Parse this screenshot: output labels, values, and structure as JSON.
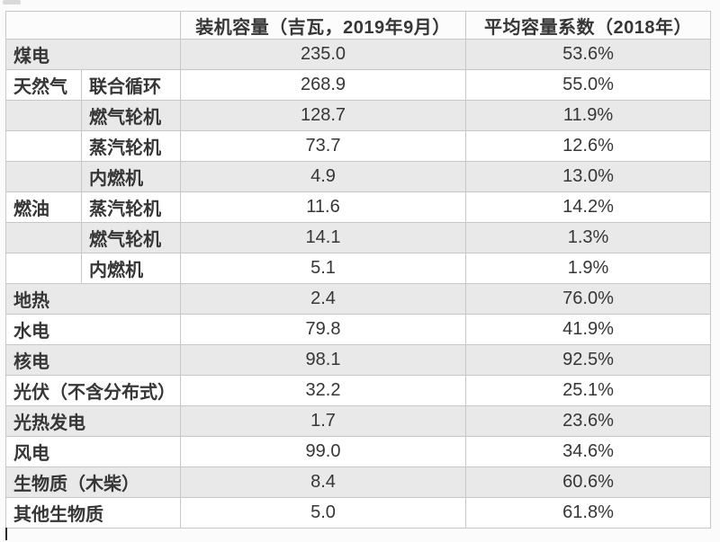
{
  "table": {
    "header": {
      "label": "",
      "capacity": "装机容量（吉瓦，2019年9月）",
      "factor": "平均容量系数（2018年）"
    },
    "rows": [
      {
        "group": "煤电",
        "capacity": "235.0",
        "factor": "53.6%"
      },
      {
        "group": "天然气",
        "sub": "联合循环",
        "capacity": "268.9",
        "factor": "55.0%"
      },
      {
        "group": "",
        "sub": "燃气轮机",
        "capacity": "128.7",
        "factor": "11.9%"
      },
      {
        "group": "",
        "sub": "蒸汽轮机",
        "capacity": "73.7",
        "factor": "12.6%"
      },
      {
        "group": "",
        "sub": "内燃机",
        "capacity": "4.9",
        "factor": "13.0%"
      },
      {
        "group": "燃油",
        "sub": "蒸汽轮机",
        "capacity": "11.6",
        "factor": "14.2%"
      },
      {
        "group": "",
        "sub": "燃气轮机",
        "capacity": "14.1",
        "factor": "1.3%"
      },
      {
        "group": "",
        "sub": "内燃机",
        "capacity": "5.1",
        "factor": "1.9%"
      },
      {
        "group": "地热",
        "capacity": "2.4",
        "factor": "76.0%"
      },
      {
        "group": "水电",
        "capacity": "79.8",
        "factor": "41.9%"
      },
      {
        "group": "核电",
        "capacity": "98.1",
        "factor": "92.5%"
      },
      {
        "group": "光伏（不含分布式）",
        "capacity": "32.2",
        "factor": "25.1%"
      },
      {
        "group": "光热发电",
        "capacity": "1.7",
        "factor": "23.6%"
      },
      {
        "group": "风电",
        "capacity": "99.0",
        "factor": "34.6%"
      },
      {
        "group": "生物质（木柴）",
        "capacity": "8.4",
        "factor": "60.6%"
      },
      {
        "group": "其他生物质",
        "capacity": "5.0",
        "factor": "61.8%"
      }
    ]
  },
  "colors": {
    "row_shade": "#e9e9e9",
    "row_white": "#ffffff",
    "border": "#c7c7c7",
    "text": "#363636"
  },
  "chart_data": {
    "type": "table",
    "columns": [
      "",
      "",
      "装机容量（吉瓦，2019年9月）",
      "平均容量系数（2018年）"
    ],
    "rows": [
      [
        "煤电",
        "",
        235.0,
        "53.6%"
      ],
      [
        "天然气",
        "联合循环",
        268.9,
        "55.0%"
      ],
      [
        "",
        "燃气轮机",
        128.7,
        "11.9%"
      ],
      [
        "",
        "蒸汽轮机",
        73.7,
        "12.6%"
      ],
      [
        "",
        "内燃机",
        4.9,
        "13.0%"
      ],
      [
        "燃油",
        "蒸汽轮机",
        11.6,
        "14.2%"
      ],
      [
        "",
        "燃气轮机",
        14.1,
        "1.3%"
      ],
      [
        "",
        "内燃机",
        5.1,
        "1.9%"
      ],
      [
        "地热",
        "",
        2.4,
        "76.0%"
      ],
      [
        "水电",
        "",
        79.8,
        "41.9%"
      ],
      [
        "核电",
        "",
        98.1,
        "92.5%"
      ],
      [
        "光伏（不含分布式）",
        "",
        32.2,
        "25.1%"
      ],
      [
        "光热发电",
        "",
        1.7,
        "23.6%"
      ],
      [
        "风电",
        "",
        99.0,
        "34.6%"
      ],
      [
        "生物质（木柴）",
        "",
        8.4,
        "60.6%"
      ],
      [
        "其他生物质",
        "",
        5.0,
        "61.8%"
      ]
    ]
  }
}
